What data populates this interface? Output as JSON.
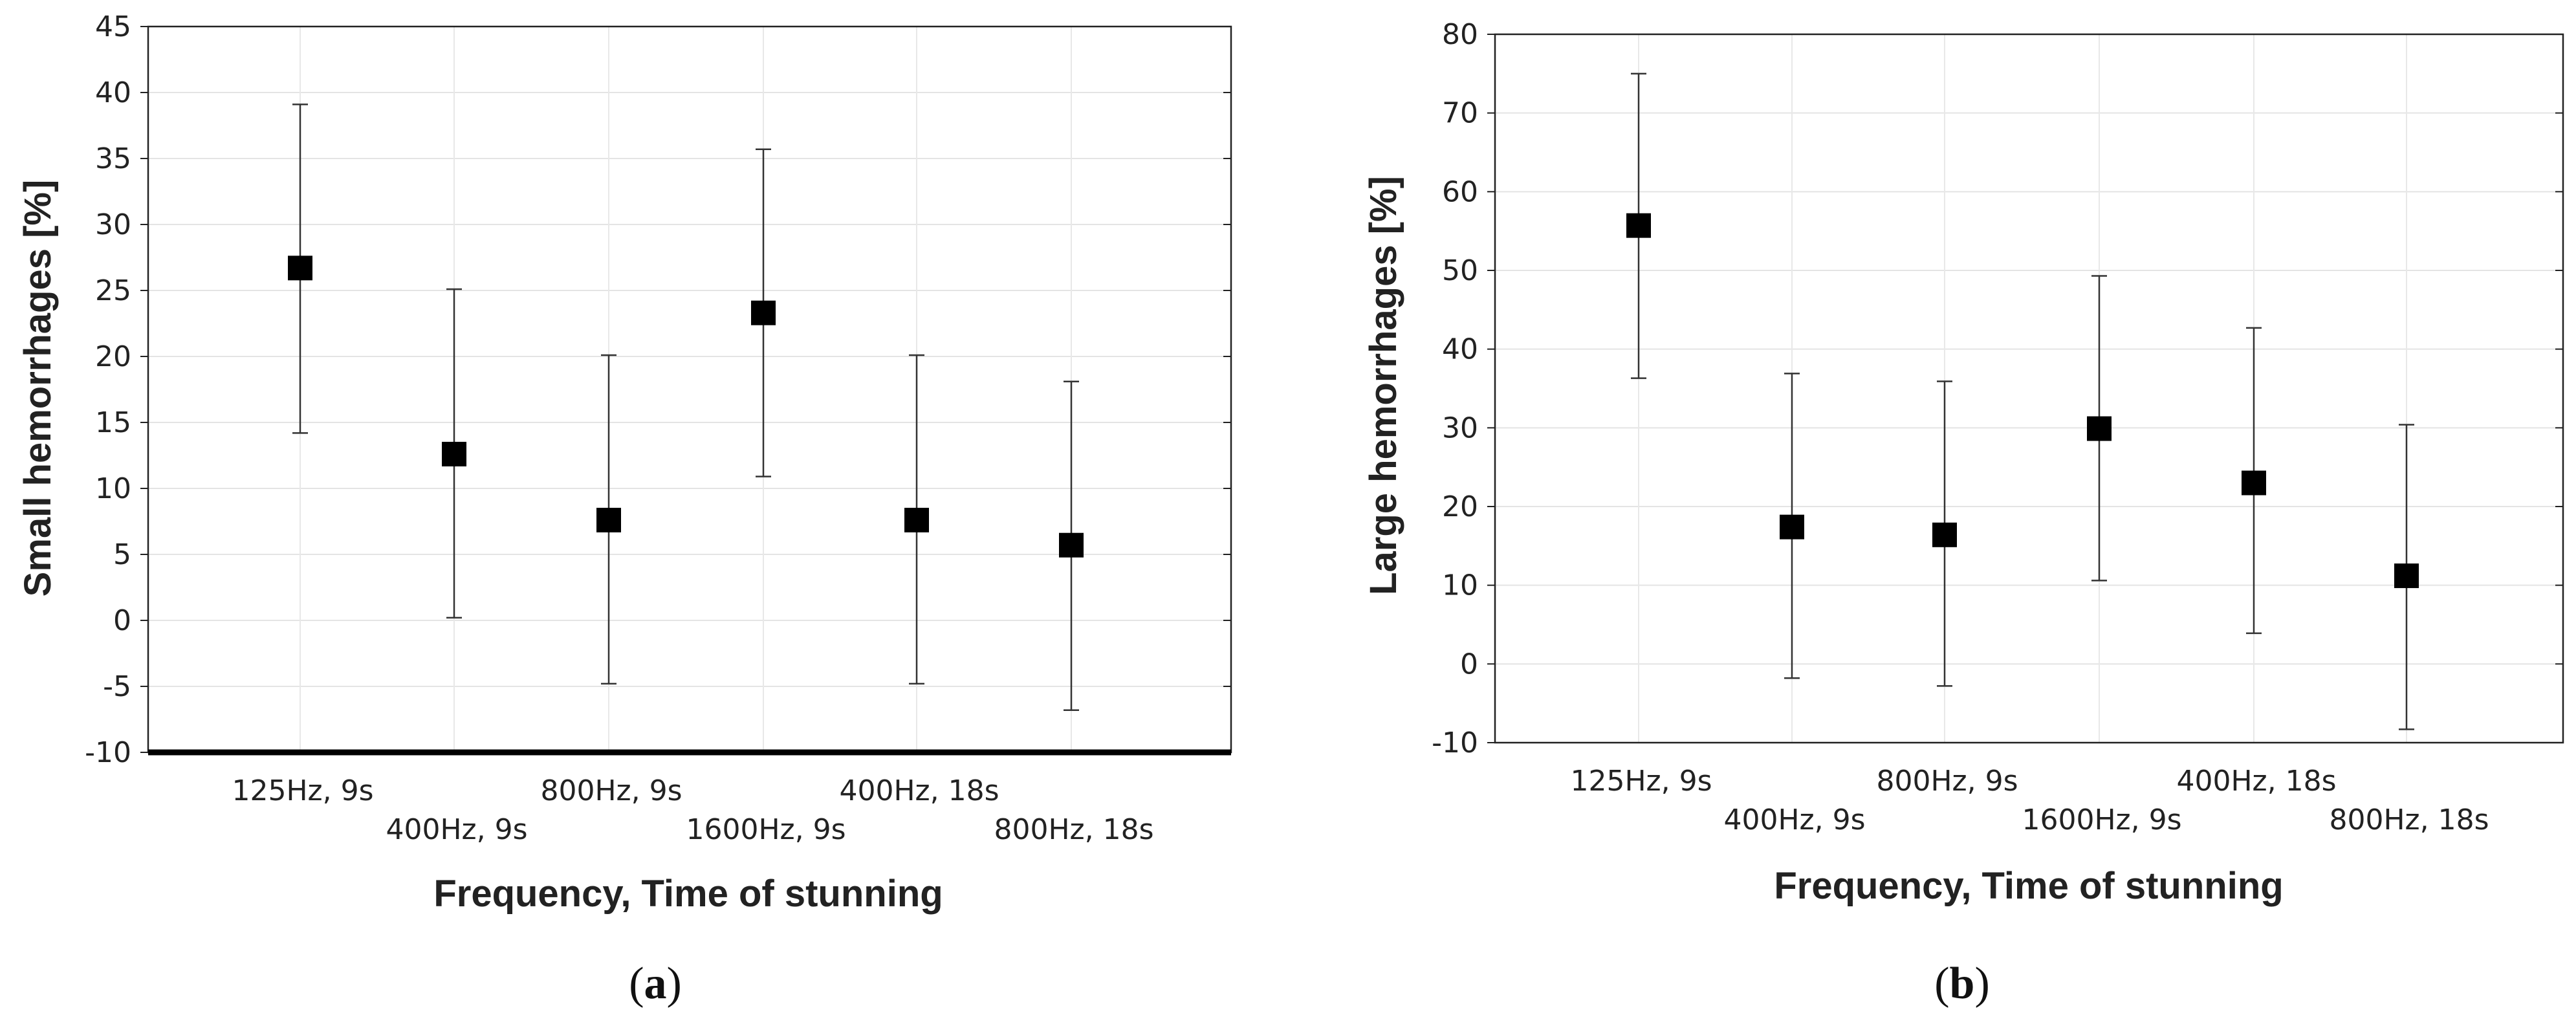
{
  "chart_data": [
    {
      "type": "scatter",
      "panel": "a",
      "panel_label": "(a)",
      "panel_letter": "a",
      "xlabel": "Frequency, Time of stunning",
      "ylabel": "Small hemorrhages [%]",
      "categories": [
        "125Hz, 9s",
        "400Hz, 9s",
        "800Hz, 9s",
        "1600Hz, 9s",
        "400Hz, 18s",
        "800Hz, 18s"
      ],
      "values": [
        26.7,
        12.6,
        7.6,
        23.3,
        7.6,
        5.7
      ],
      "error_low": [
        14.2,
        0.2,
        -4.8,
        10.9,
        -4.8,
        -6.8
      ],
      "error_high": [
        39.1,
        25.1,
        20.1,
        35.7,
        20.1,
        18.1
      ],
      "ylim": [
        -10,
        45
      ],
      "yticks": [
        -10,
        -5,
        0,
        5,
        10,
        15,
        20,
        25,
        30,
        35,
        40,
        45
      ],
      "grid": true
    },
    {
      "type": "scatter",
      "panel": "b",
      "panel_label": "(b)",
      "panel_letter": "b",
      "xlabel": "Frequency, Time of stunning",
      "ylabel": "Large hemorrhages [%]",
      "categories": [
        "125Hz, 9s",
        "400Hz, 9s",
        "800Hz, 9s",
        "1600Hz, 9s",
        "400Hz, 18s",
        "800Hz, 18s"
      ],
      "values": [
        55.7,
        17.4,
        16.4,
        29.9,
        23.0,
        11.2
      ],
      "error_low": [
        36.3,
        -1.8,
        -2.8,
        10.6,
        3.9,
        -8.3
      ],
      "error_high": [
        75.0,
        36.9,
        35.9,
        49.3,
        42.7,
        30.4
      ],
      "ylim": [
        -10,
        80
      ],
      "yticks": [
        -10,
        0,
        10,
        20,
        30,
        40,
        50,
        60,
        70,
        80
      ],
      "grid": true
    }
  ]
}
